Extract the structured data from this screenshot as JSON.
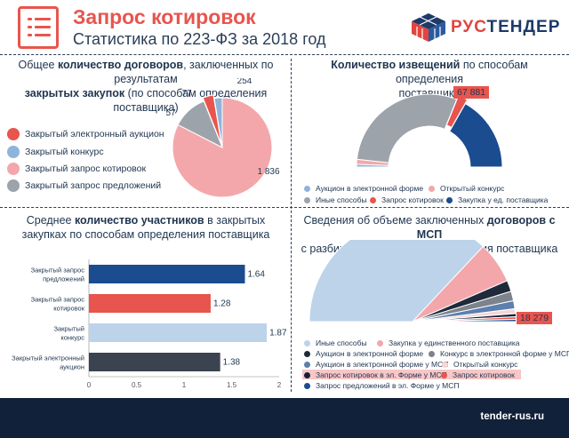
{
  "header": {
    "title": "Запрос котировок",
    "subtitle": "Статистика по 223-ФЗ за 2018 год",
    "logo": {
      "prefix": "РУС",
      "suffix": "ТЕНДЕР"
    }
  },
  "footer": {
    "site": "tender-rus.ru"
  },
  "colors": {
    "red": "#e8554e",
    "blue": "#8fb4dc",
    "pink": "#f4a7ab",
    "gray": "#9da3ab",
    "navy": "#1a4c8f",
    "dark": "#3b4350",
    "light_blue": "#bcd3ea"
  },
  "panels": {
    "p1": {
      "title_a": "Общее ",
      "title_b": "количество договоров",
      "title_c": ", заключенных по результатам",
      "title_d": "закрытых закупок",
      "title_e": " (по способам определения поставщика)"
    },
    "p2": {
      "title_b": "Количество извещений",
      "title_c": " по способам определения",
      "title_d": "поставщика"
    },
    "p3": {
      "title_a": "Среднее ",
      "title_b": "количество участников",
      "title_c": " в закрытых",
      "title_d": "закупках по способам определения поставщика"
    },
    "p4": {
      "title_a": "Сведения об объеме заключенных ",
      "title_b": "договоров с МСП",
      "title_c": "с разбивкой по способу определения поставщика"
    }
  },
  "chart_data": [
    {
      "type": "pie",
      "categories": [
        "Закрытый электронный аукцион",
        "Закрытый конкурс",
        "Закрытый запрос котировок",
        "Закрытый запрос предложений"
      ],
      "values": [
        77,
        57,
        1836,
        254
      ],
      "labels": [
        "77",
        "57",
        "1 836",
        "254"
      ],
      "colors": [
        "#e8554e",
        "#8fb4dc",
        "#f4a7ab",
        "#9da3ab"
      ]
    },
    {
      "type": "pie",
      "semicircle": true,
      "categories": [
        "Аукцион в электронной форме",
        "Открытый конкурс",
        "Иные способы",
        "Запрос котировок",
        "Закупка у ед. поставщика"
      ],
      "values": [
        1.2,
        2.2,
        58.8,
        4.2,
        33.6
      ],
      "colors": [
        "#8fb4dc",
        "#f4a7ab",
        "#9da3ab",
        "#e8554e",
        "#1a4c8f"
      ],
      "annotation": "67 881"
    },
    {
      "type": "bar",
      "orientation": "horizontal",
      "categories": [
        "Закрытый запрос предложений",
        "Закрытый запрос котировок",
        "Закрытый конкурс",
        "Закрытый электронный аукцион"
      ],
      "values": [
        1.64,
        1.28,
        1.87,
        1.38
      ],
      "value_labels": [
        "1.64",
        "1.28",
        "1.87",
        "1.38"
      ],
      "colors": [
        "#1a4c8f",
        "#e8554e",
        "#bcd3ea",
        "#3b4350"
      ],
      "xlim": [
        0,
        2
      ],
      "xticks": [
        "0",
        "0.5",
        "1",
        "1.5",
        "2"
      ]
    },
    {
      "type": "pie",
      "semicircle": true,
      "categories": [
        "Иные способы",
        "Закупка у единственного поставщика",
        "Аукцион в электронной форме",
        "Конкурс в электронной форме у МСП",
        "Аукцион в электронной форме у МСП",
        "Открытый конкурс",
        "Запрос котировок в эл. Форме у МСП",
        "Запрос котировок",
        "Запрос предложений в эл. Форме у МСП"
      ],
      "values": [
        74,
        13,
        3.5,
        3,
        2.5,
        1.5,
        1,
        0.8,
        0.7
      ],
      "colors": [
        "#bcd3ea",
        "#f4a7ab",
        "#1f2a3a",
        "#7d838c",
        "#5b7fae",
        "#f7d6d6",
        "#12213a",
        "#e8554e",
        "#1a4c8f"
      ],
      "annotation": "18 279"
    }
  ]
}
